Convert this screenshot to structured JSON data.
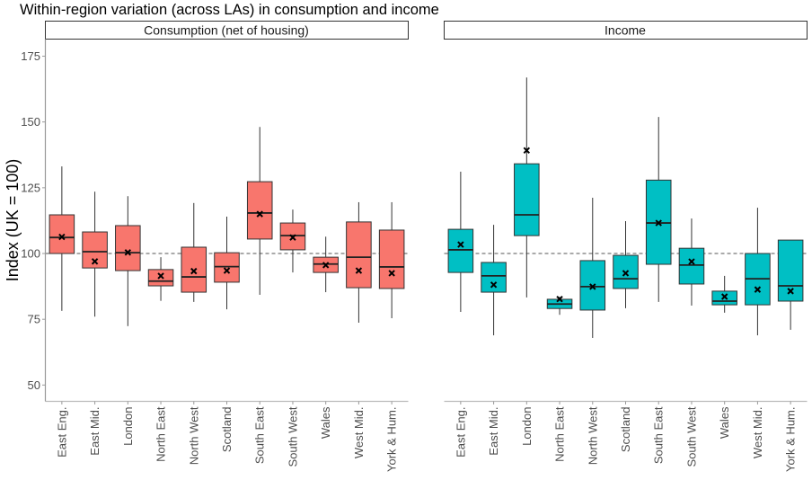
{
  "chart_data": {
    "type": "boxplot",
    "title": "Within-region variation (across LAs) in consumption and income",
    "ylabel": "Index (UK = 100)",
    "xlabel": "",
    "ylim": [
      43.8,
      181.5
    ],
    "yticks": [
      50,
      75,
      100,
      125,
      150,
      175
    ],
    "reference_line": {
      "value": 100,
      "style": "dashed"
    },
    "grid": false,
    "legend": "none",
    "categories": [
      "East Eng.",
      "East Mid.",
      "London",
      "North East",
      "North West",
      "Scotland",
      "South East",
      "South West",
      "Wales",
      "West Mid.",
      "York & Hum."
    ],
    "panels": [
      {
        "name": "Consumption (net of housing)",
        "color": "#F8766D",
        "boxes": [
          {
            "whisker_low": 78.2,
            "q1": 100.0,
            "median": 106.1,
            "q3": 114.7,
            "whisker_high": 133.1,
            "mean": 106.3
          },
          {
            "whisker_low": 76.0,
            "q1": 94.5,
            "median": 100.7,
            "q3": 108.2,
            "whisker_high": 123.5,
            "mean": 97.0
          },
          {
            "whisker_low": 72.4,
            "q1": 93.5,
            "median": 100.3,
            "q3": 110.6,
            "whisker_high": 121.8,
            "mean": 100.4
          },
          {
            "whisker_low": 82.0,
            "q1": 87.7,
            "median": 89.5,
            "q3": 93.9,
            "whisker_high": 98.6,
            "mean": 91.5
          },
          {
            "whisker_low": 81.6,
            "q1": 85.3,
            "median": 91.1,
            "q3": 102.4,
            "whisker_high": 119.2,
            "mean": 93.3
          },
          {
            "whisker_low": 78.8,
            "q1": 89.1,
            "median": 95.0,
            "q3": 100.3,
            "whisker_high": 114.0,
            "mean": 93.5
          },
          {
            "whisker_low": 84.3,
            "q1": 105.5,
            "median": 115.4,
            "q3": 127.3,
            "whisker_high": 148.1,
            "mean": 115.0
          },
          {
            "whisker_low": 92.8,
            "q1": 101.4,
            "median": 106.8,
            "q3": 111.6,
            "whisker_high": 116.7,
            "mean": 106.1
          },
          {
            "whisker_low": 85.3,
            "q1": 92.8,
            "median": 96.0,
            "q3": 98.6,
            "whisker_high": 106.4,
            "mean": 95.6
          },
          {
            "whisker_low": 73.7,
            "q1": 87.0,
            "median": 98.6,
            "q3": 112.0,
            "whisker_high": 119.5,
            "mean": 93.5
          },
          {
            "whisker_low": 75.4,
            "q1": 86.7,
            "median": 94.9,
            "q3": 108.9,
            "whisker_high": 119.5,
            "mean": 92.5
          }
        ]
      },
      {
        "name": "Income",
        "color": "#00BFC4",
        "boxes": [
          {
            "whisker_low": 77.8,
            "q1": 92.8,
            "median": 101.4,
            "q3": 109.2,
            "whisker_high": 131.1,
            "mean": 103.4
          },
          {
            "whisker_low": 68.9,
            "q1": 85.3,
            "median": 91.5,
            "q3": 96.6,
            "whisker_high": 110.9,
            "mean": 88.1
          },
          {
            "whisker_low": 83.3,
            "q1": 106.8,
            "median": 114.7,
            "q3": 134.1,
            "whisker_high": 166.9,
            "mean": 139.2
          },
          {
            "whisker_low": 76.7,
            "q1": 79.1,
            "median": 80.8,
            "q3": 82.6,
            "whisker_high": 83.5,
            "mean": 82.7
          },
          {
            "whisker_low": 67.9,
            "q1": 78.5,
            "median": 87.4,
            "q3": 97.3,
            "whisker_high": 121.2,
            "mean": 87.4
          },
          {
            "whisker_low": 79.2,
            "q1": 86.7,
            "median": 90.4,
            "q3": 99.3,
            "whisker_high": 112.3,
            "mean": 92.5
          },
          {
            "whisker_low": 81.6,
            "q1": 95.9,
            "median": 111.6,
            "q3": 127.9,
            "whisker_high": 151.9,
            "mean": 111.6
          },
          {
            "whisker_low": 80.2,
            "q1": 88.4,
            "median": 95.6,
            "q3": 102.0,
            "whisker_high": 113.3,
            "mean": 96.9
          },
          {
            "whisker_low": 77.5,
            "q1": 80.5,
            "median": 81.9,
            "q3": 85.7,
            "whisker_high": 91.5,
            "mean": 83.6
          },
          {
            "whisker_low": 68.9,
            "q1": 80.5,
            "median": 90.4,
            "q3": 100.0,
            "whisker_high": 117.4,
            "mean": 86.3
          },
          {
            "whisker_low": 71.0,
            "q1": 81.9,
            "median": 87.7,
            "q3": 105.1,
            "whisker_high": 105.1,
            "mean": 85.7
          }
        ]
      }
    ]
  }
}
